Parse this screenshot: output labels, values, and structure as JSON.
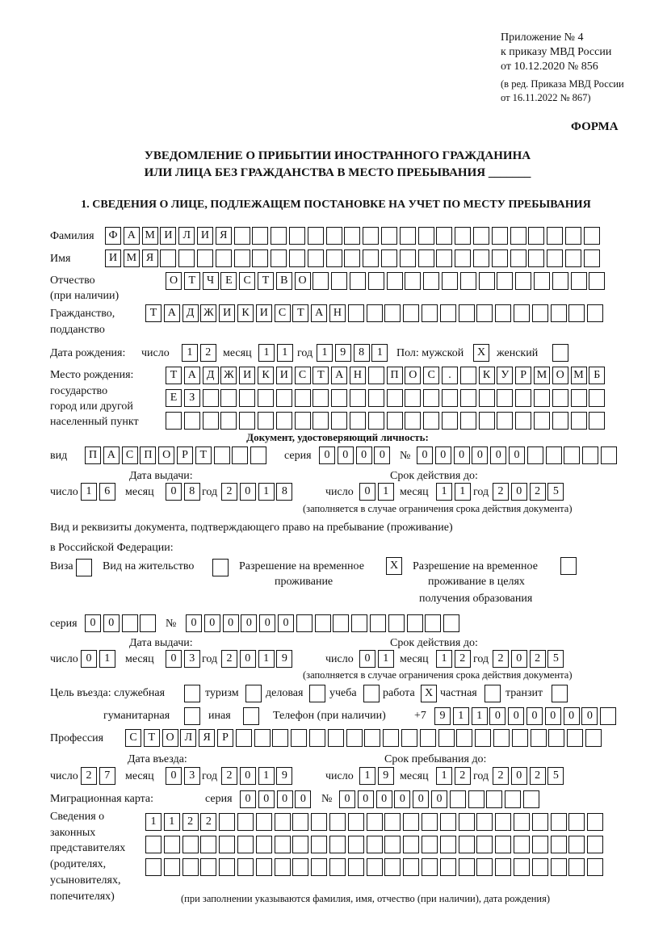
{
  "header": {
    "appendix": [
      "Приложение № 4",
      "к приказу МВД России",
      "от 10.12.2020 № 856"
    ],
    "revision": [
      "(в ред. Приказа МВД России",
      "от 16.11.2022 № 867)"
    ],
    "form_label": "ФОРМА",
    "title_line1": "УВЕДОМЛЕНИЕ О ПРИБЫТИИ ИНОСТРАННОГО ГРАЖДАНИНА",
    "title_line2": "ИЛИ ЛИЦА БЕЗ ГРАЖДАНСТВА В МЕСТО ПРЕБЫВАНИЯ _______",
    "section_heading": "1. СВЕДЕНИЯ О ЛИЦЕ, ПОДЛЕЖАЩЕМ ПОСТАНОВКЕ НА УЧЕТ ПО МЕСТУ ПРЕБЫВАНИЯ"
  },
  "labels": {
    "surname": "Фамилия",
    "name": "Имя",
    "patronymic": "Отчество",
    "patronymic2": "(при наличии)",
    "citizenship": "Гражданство,",
    "citizenship2": "подданство",
    "birth_date": "Дата рождения:",
    "day": "число",
    "month": "месяц",
    "year": "год",
    "sex": "Пол: мужской",
    "female": "женский",
    "birthplace": [
      "Место рождения:",
      "государство",
      "город или другой",
      "населенный пункт"
    ],
    "id_doc": "Документ, удостоверяющий личность:",
    "kind": "вид",
    "series": "серия",
    "number": "№",
    "issue_date": "Дата выдачи:",
    "valid_until": "Срок действия до:",
    "validity_note": "(заполняется в случае ограничения срока действия документа)",
    "stay_doc1": "Вид и реквизиты документа, подтверждающего право на пребывание (проживание)",
    "stay_doc2": "в Российской Федерации:",
    "visa": "Виза",
    "residence": "Вид на жительство",
    "temp_res": [
      "Разрешение на временное",
      "проживание"
    ],
    "temp_res_edu": [
      "Разрешение на временное",
      "проживание в целях",
      "получения образования"
    ],
    "purpose": "Цель въезда: служебная",
    "tourism": "туризм",
    "business": "деловая",
    "study": "учеба",
    "work": "работа",
    "private": "частная",
    "transit": "транзит",
    "humanitarian": "гуманитарная",
    "other": "иная",
    "phone": "Телефон (при наличии)",
    "phone_prefix": "+7",
    "profession": "Профессия",
    "entry_date": "Дата въезда:",
    "stay_until": "Срок пребывания до:",
    "migration_card": "Миграционная карта:",
    "representatives": [
      "Сведения о",
      "законных",
      "представителях",
      "(родителях,",
      "усыновителях,",
      "попечителях)"
    ],
    "representatives_note": "(при заполнении указываются фамилия, имя, отчество (при наличии), дата рождения)"
  },
  "values": {
    "surname": "ФАМИЛИЯ",
    "name": "ИМЯ",
    "patronymic": "ОТЧЕСТВО",
    "citizenship": "ТАДЖИКИСТАН",
    "birth": {
      "day": "12",
      "month": "11",
      "year": "1981"
    },
    "sex_male": "X",
    "sex_female": "",
    "birthplace": [
      "ТАДЖИКИСТАН ПОС. КУРМОМБ",
      "ЕЗ",
      ""
    ],
    "id_doc": {
      "kind": "ПАСПОРТ",
      "series": "0000",
      "number": "000000",
      "issue": {
        "day": "16",
        "month": "08",
        "year": "2018"
      },
      "valid": {
        "day": "01",
        "month": "11",
        "year": "2025"
      }
    },
    "stay_doc": {
      "visa": "",
      "residence": "",
      "temp_res": "X",
      "temp_res_edu": "",
      "series": "00",
      "number": "000000",
      "issue": {
        "day": "01",
        "month": "03",
        "year": "2019"
      },
      "valid": {
        "day": "01",
        "month": "12",
        "year": "2025"
      }
    },
    "purpose": {
      "official": "",
      "tourism": "",
      "business": "",
      "study": "",
      "work": "X",
      "private": "",
      "transit": "",
      "humanitarian": "",
      "other": ""
    },
    "phone": "911000000",
    "profession": "СТОЛЯР",
    "entry": {
      "day": "27",
      "month": "03",
      "year": "2019"
    },
    "stay_until": {
      "day": "19",
      "month": "12",
      "year": "2025"
    },
    "migration_card": {
      "series": "0000",
      "number": "000000"
    },
    "representatives": [
      "1122",
      "",
      ""
    ]
  }
}
